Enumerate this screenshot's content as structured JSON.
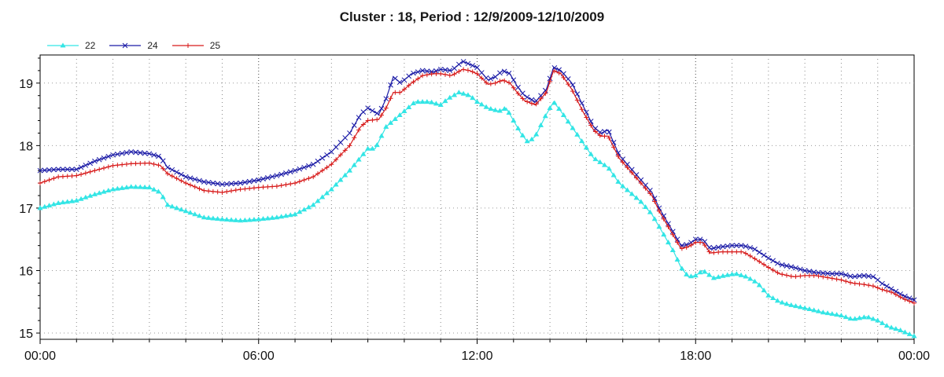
{
  "chart_data": {
    "type": "line",
    "title": "Cluster : 18, Period : 12/9/2009-12/10/2009",
    "xlabel": "",
    "ylabel": "",
    "ylim": [
      14.9,
      19.45
    ],
    "yticks": [
      15,
      16,
      17,
      18,
      19
    ],
    "xlim": [
      0,
      24
    ],
    "xticks": [
      0,
      6,
      12,
      18,
      24
    ],
    "xtick_labels": [
      "00:00",
      "06:00",
      "12:00",
      "18:00",
      "00:00"
    ],
    "grid": true,
    "legend_position": "top-left",
    "series": [
      {
        "name": "22",
        "color": "#33e5e5",
        "marker": "triangle",
        "points": [
          [
            0,
            17.0
          ],
          [
            0.5,
            17.08
          ],
          [
            1,
            17.12
          ],
          [
            1.5,
            17.22
          ],
          [
            2,
            17.3
          ],
          [
            2.5,
            17.34
          ],
          [
            3,
            17.33
          ],
          [
            3.3,
            17.25
          ],
          [
            3.5,
            17.05
          ],
          [
            4,
            16.95
          ],
          [
            4.5,
            16.85
          ],
          [
            5,
            16.82
          ],
          [
            5.5,
            16.8
          ],
          [
            6,
            16.82
          ],
          [
            6.5,
            16.85
          ],
          [
            7,
            16.9
          ],
          [
            7.5,
            17.05
          ],
          [
            8,
            17.3
          ],
          [
            8.5,
            17.6
          ],
          [
            9,
            17.95
          ],
          [
            9.2,
            17.95
          ],
          [
            9.5,
            18.3
          ],
          [
            9.8,
            18.45
          ],
          [
            10,
            18.55
          ],
          [
            10.3,
            18.7
          ],
          [
            10.7,
            18.7
          ],
          [
            11,
            18.65
          ],
          [
            11.2,
            18.75
          ],
          [
            11.5,
            18.85
          ],
          [
            11.8,
            18.8
          ],
          [
            12,
            18.7
          ],
          [
            12.3,
            18.6
          ],
          [
            12.6,
            18.55
          ],
          [
            12.8,
            18.6
          ],
          [
            13,
            18.4
          ],
          [
            13.2,
            18.2
          ],
          [
            13.4,
            18.05
          ],
          [
            13.6,
            18.15
          ],
          [
            13.9,
            18.5
          ],
          [
            14.1,
            18.7
          ],
          [
            14.3,
            18.55
          ],
          [
            14.6,
            18.3
          ],
          [
            14.9,
            18.05
          ],
          [
            15.2,
            17.8
          ],
          [
            15.6,
            17.65
          ],
          [
            15.9,
            17.4
          ],
          [
            16.2,
            17.25
          ],
          [
            16.5,
            17.1
          ],
          [
            16.8,
            16.9
          ],
          [
            17.0,
            16.7
          ],
          [
            17.2,
            16.5
          ],
          [
            17.4,
            16.3
          ],
          [
            17.6,
            16.05
          ],
          [
            17.8,
            15.9
          ],
          [
            18.0,
            15.92
          ],
          [
            18.2,
            16.0
          ],
          [
            18.5,
            15.88
          ],
          [
            18.8,
            15.92
          ],
          [
            19.1,
            15.95
          ],
          [
            19.4,
            15.9
          ],
          [
            19.7,
            15.8
          ],
          [
            20,
            15.6
          ],
          [
            20.3,
            15.5
          ],
          [
            20.6,
            15.45
          ],
          [
            21,
            15.4
          ],
          [
            21.5,
            15.33
          ],
          [
            22,
            15.28
          ],
          [
            22.3,
            15.22
          ],
          [
            22.7,
            15.26
          ],
          [
            23,
            15.2
          ],
          [
            23.3,
            15.1
          ],
          [
            23.6,
            15.05
          ],
          [
            24,
            14.95
          ]
        ]
      },
      {
        "name": "24",
        "color": "#1a1aa6",
        "marker": "x",
        "points": [
          [
            0,
            17.6
          ],
          [
            0.5,
            17.62
          ],
          [
            1,
            17.62
          ],
          [
            1.5,
            17.75
          ],
          [
            2,
            17.85
          ],
          [
            2.5,
            17.9
          ],
          [
            3,
            17.87
          ],
          [
            3.3,
            17.82
          ],
          [
            3.5,
            17.65
          ],
          [
            4,
            17.5
          ],
          [
            4.5,
            17.42
          ],
          [
            5,
            17.38
          ],
          [
            5.5,
            17.4
          ],
          [
            6,
            17.45
          ],
          [
            6.5,
            17.52
          ],
          [
            7,
            17.6
          ],
          [
            7.5,
            17.7
          ],
          [
            8,
            17.9
          ],
          [
            8.5,
            18.2
          ],
          [
            8.8,
            18.5
          ],
          [
            9,
            18.6
          ],
          [
            9.3,
            18.5
          ],
          [
            9.5,
            18.75
          ],
          [
            9.7,
            19.1
          ],
          [
            9.9,
            19.0
          ],
          [
            10.2,
            19.15
          ],
          [
            10.5,
            19.2
          ],
          [
            10.8,
            19.18
          ],
          [
            11,
            19.22
          ],
          [
            11.3,
            19.2
          ],
          [
            11.6,
            19.35
          ],
          [
            11.8,
            19.3
          ],
          [
            12,
            19.25
          ],
          [
            12.3,
            19.05
          ],
          [
            12.5,
            19.1
          ],
          [
            12.7,
            19.2
          ],
          [
            12.9,
            19.15
          ],
          [
            13.1,
            18.95
          ],
          [
            13.3,
            18.8
          ],
          [
            13.6,
            18.7
          ],
          [
            13.9,
            18.9
          ],
          [
            14.1,
            19.25
          ],
          [
            14.3,
            19.2
          ],
          [
            14.6,
            19.0
          ],
          [
            14.9,
            18.65
          ],
          [
            15.2,
            18.3
          ],
          [
            15.4,
            18.2
          ],
          [
            15.6,
            18.25
          ],
          [
            15.9,
            17.85
          ],
          [
            16.2,
            17.65
          ],
          [
            16.5,
            17.45
          ],
          [
            16.8,
            17.25
          ],
          [
            17.0,
            17.0
          ],
          [
            17.2,
            16.8
          ],
          [
            17.4,
            16.6
          ],
          [
            17.6,
            16.4
          ],
          [
            17.8,
            16.42
          ],
          [
            18.0,
            16.5
          ],
          [
            18.2,
            16.5
          ],
          [
            18.4,
            16.35
          ],
          [
            18.7,
            16.38
          ],
          [
            19.0,
            16.4
          ],
          [
            19.3,
            16.4
          ],
          [
            19.6,
            16.35
          ],
          [
            20,
            16.2
          ],
          [
            20.3,
            16.1
          ],
          [
            20.7,
            16.05
          ],
          [
            21,
            16.0
          ],
          [
            21.3,
            15.97
          ],
          [
            21.7,
            15.95
          ],
          [
            22,
            15.95
          ],
          [
            22.3,
            15.9
          ],
          [
            22.6,
            15.92
          ],
          [
            22.9,
            15.9
          ],
          [
            23.1,
            15.8
          ],
          [
            23.4,
            15.7
          ],
          [
            23.7,
            15.6
          ],
          [
            24,
            15.53
          ]
        ]
      },
      {
        "name": "25",
        "color": "#d71a1a",
        "marker": "plus",
        "points": [
          [
            0,
            17.4
          ],
          [
            0.5,
            17.5
          ],
          [
            1,
            17.52
          ],
          [
            1.5,
            17.6
          ],
          [
            2,
            17.68
          ],
          [
            2.5,
            17.71
          ],
          [
            3,
            17.72
          ],
          [
            3.3,
            17.68
          ],
          [
            3.5,
            17.55
          ],
          [
            4,
            17.4
          ],
          [
            4.5,
            17.28
          ],
          [
            5,
            17.25
          ],
          [
            5.5,
            17.3
          ],
          [
            6,
            17.33
          ],
          [
            6.5,
            17.35
          ],
          [
            7,
            17.4
          ],
          [
            7.5,
            17.5
          ],
          [
            8,
            17.7
          ],
          [
            8.5,
            18.0
          ],
          [
            8.8,
            18.3
          ],
          [
            9,
            18.4
          ],
          [
            9.3,
            18.42
          ],
          [
            9.5,
            18.6
          ],
          [
            9.7,
            18.85
          ],
          [
            9.9,
            18.85
          ],
          [
            10.2,
            19.0
          ],
          [
            10.5,
            19.12
          ],
          [
            10.8,
            19.15
          ],
          [
            11,
            19.15
          ],
          [
            11.3,
            19.12
          ],
          [
            11.6,
            19.22
          ],
          [
            11.8,
            19.2
          ],
          [
            12,
            19.15
          ],
          [
            12.3,
            18.98
          ],
          [
            12.5,
            19.0
          ],
          [
            12.7,
            19.05
          ],
          [
            12.9,
            19.0
          ],
          [
            13.1,
            18.85
          ],
          [
            13.3,
            18.72
          ],
          [
            13.6,
            18.65
          ],
          [
            13.9,
            18.85
          ],
          [
            14.1,
            19.2
          ],
          [
            14.3,
            19.15
          ],
          [
            14.6,
            18.9
          ],
          [
            14.9,
            18.55
          ],
          [
            15.2,
            18.25
          ],
          [
            15.4,
            18.15
          ],
          [
            15.6,
            18.15
          ],
          [
            15.9,
            17.8
          ],
          [
            16.2,
            17.6
          ],
          [
            16.5,
            17.4
          ],
          [
            16.8,
            17.2
          ],
          [
            17.0,
            16.95
          ],
          [
            17.2,
            16.75
          ],
          [
            17.4,
            16.55
          ],
          [
            17.6,
            16.35
          ],
          [
            17.8,
            16.38
          ],
          [
            18.0,
            16.45
          ],
          [
            18.2,
            16.45
          ],
          [
            18.4,
            16.28
          ],
          [
            18.7,
            16.3
          ],
          [
            19.0,
            16.3
          ],
          [
            19.3,
            16.3
          ],
          [
            19.6,
            16.2
          ],
          [
            20,
            16.05
          ],
          [
            20.3,
            15.95
          ],
          [
            20.7,
            15.9
          ],
          [
            21,
            15.92
          ],
          [
            21.3,
            15.92
          ],
          [
            21.7,
            15.88
          ],
          [
            22,
            15.85
          ],
          [
            22.3,
            15.8
          ],
          [
            22.6,
            15.78
          ],
          [
            22.9,
            15.75
          ],
          [
            23.1,
            15.7
          ],
          [
            23.4,
            15.65
          ],
          [
            23.7,
            15.55
          ],
          [
            24,
            15.48
          ]
        ]
      }
    ]
  }
}
